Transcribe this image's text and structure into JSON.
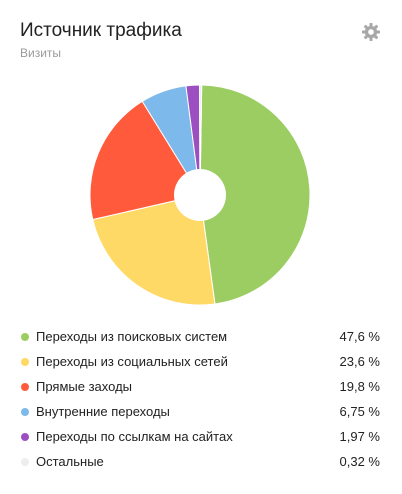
{
  "widget": {
    "title": "Источник трафика",
    "subtitle": "Визиты",
    "settings_icon": "gear-icon"
  },
  "colors": {
    "search": "#9bcd63",
    "social": "#ffd966",
    "direct": "#ff5a3c",
    "internal": "#7db9ea",
    "links": "#9b4fc0",
    "other": "#eeeeee"
  },
  "chart_data": {
    "type": "pie",
    "donut": true,
    "categories": [
      "Переходы из поисковых систем",
      "Переходы из социальных сетей",
      "Прямые заходы",
      "Внутренние переходы",
      "Переходы по ссылкам на сайтах",
      "Остальные"
    ],
    "values": [
      47.6,
      23.6,
      19.8,
      6.75,
      1.97,
      0.32
    ],
    "value_labels": [
      "47,6 %",
      "23,6 %",
      "19,8 %",
      "6,75 %",
      "1,97 %",
      "0,32 %"
    ],
    "colors": [
      "#9bcd63",
      "#ffd966",
      "#ff5a3c",
      "#7db9ea",
      "#9b4fc0",
      "#eeeeee"
    ],
    "legend_position": "bottom"
  }
}
